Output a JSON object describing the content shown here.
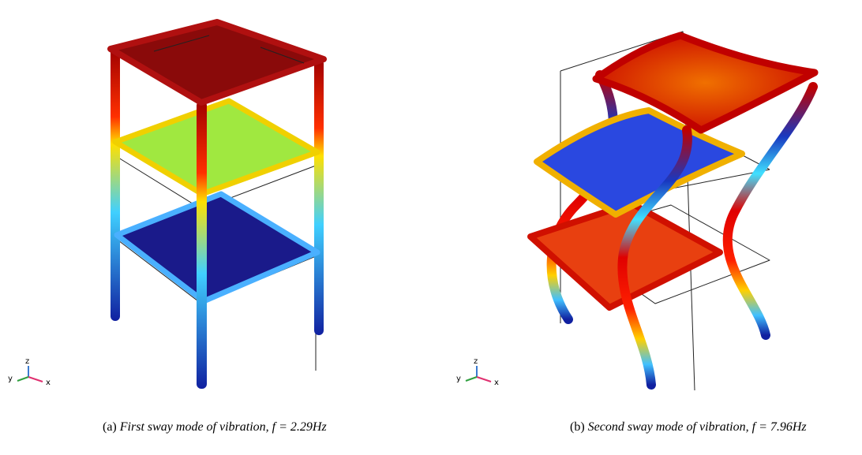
{
  "figures": [
    {
      "label": "(a)",
      "text": "First sway mode of vibration,",
      "equation": "f = 2.29Hz",
      "axes": {
        "x": "x",
        "y": "y",
        "z": "z"
      }
    },
    {
      "label": "(b)",
      "text": "Second sway mode of vibration,",
      "equation": "f = 7.96Hz",
      "axes": {
        "x": "x",
        "y": "y",
        "z": "z"
      }
    }
  ]
}
